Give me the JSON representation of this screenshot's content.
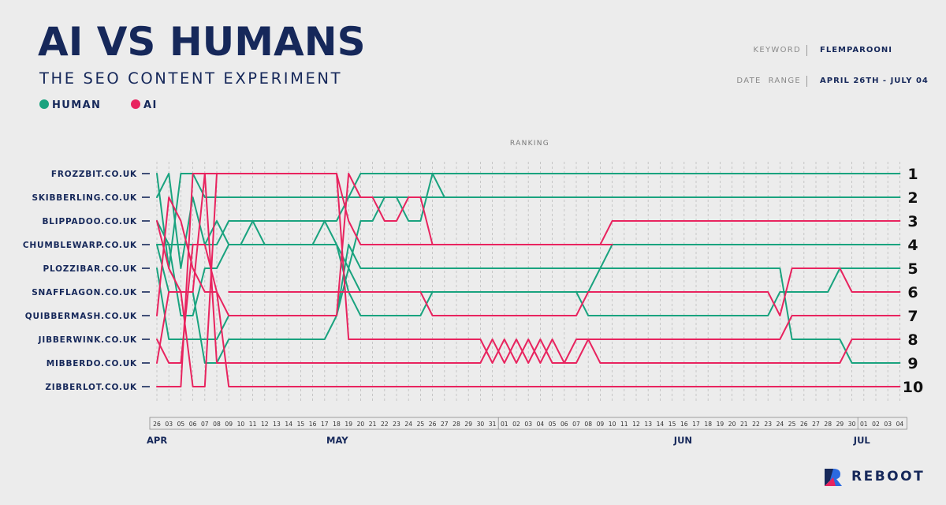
{
  "header": {
    "title": "AI VS HUMANS",
    "subtitle": "THE SEO CONTENT EXPERIMENT",
    "keyword_label": "KEYWORD",
    "keyword_value": "FLEMPAROONI",
    "date_range_label": "DATE  RANGE",
    "date_range_value": "APRIL 26TH - JULY 04"
  },
  "legend": {
    "human_label": "HUMAN",
    "ai_label": "AI"
  },
  "brand": {
    "name": "REBOOT"
  },
  "colors": {
    "human": "#1aa37f",
    "ai": "#e8245f",
    "text": "#16285a",
    "grid": "#bdbdbd"
  },
  "chart_data": {
    "type": "line",
    "title": "RANKING",
    "y_categories": [
      "FROZZBIT.CO.UK",
      "SKIBBERLING.CO.UK",
      "BLIPPADOO.CO.UK",
      "CHUMBLEWARP.CO.UK",
      "PLOZZIBAR.CO.UK",
      "SNAFFLAGON.CO.UK",
      "QUIBBERMASH.CO.UK",
      "JIBBERWINK.CO.UK",
      "MIBBERDO.CO.UK",
      "ZIBBERLOT.CO.UK"
    ],
    "y_rank_labels": [
      "1",
      "2",
      "3",
      "4",
      "5",
      "6",
      "7",
      "8",
      "9",
      "10"
    ],
    "x_ticks": [
      "26",
      "03",
      "05",
      "06",
      "07",
      "08",
      "09",
      "10",
      "11",
      "12",
      "13",
      "14",
      "15",
      "16",
      "17",
      "18",
      "19",
      "20",
      "21",
      "22",
      "23",
      "24",
      "25",
      "26",
      "27",
      "28",
      "29",
      "30",
      "31",
      "01",
      "02",
      "03",
      "04",
      "05",
      "06",
      "07",
      "08",
      "09",
      "10",
      "11",
      "12",
      "13",
      "14",
      "15",
      "16",
      "17",
      "18",
      "19",
      "20",
      "21",
      "22",
      "23",
      "24",
      "25",
      "26",
      "27",
      "28",
      "29",
      "30",
      "01",
      "02",
      "03",
      "04"
    ],
    "months": [
      {
        "label": "APR",
        "tick_index": 0
      },
      {
        "label": "MAY",
        "tick_index": 15
      },
      {
        "label": "JUN",
        "tick_index": 44
      },
      {
        "label": "JUL",
        "tick_index": 59
      }
    ],
    "month_boundaries": [
      28,
      58
    ],
    "series": [
      {
        "name": "HUMAN",
        "group": "human",
        "points": [
          [
            0,
            1
          ],
          [
            1,
            5
          ],
          [
            2,
            1
          ],
          [
            3,
            1
          ],
          [
            4,
            2
          ],
          [
            5,
            2
          ],
          [
            6,
            2
          ],
          [
            62,
            2
          ]
        ]
      },
      {
        "name": "HUMAN",
        "group": "human",
        "points": [
          [
            0,
            2
          ],
          [
            1,
            1
          ],
          [
            2,
            5
          ],
          [
            3,
            2
          ],
          [
            4,
            4
          ],
          [
            5,
            4
          ],
          [
            6,
            3
          ],
          [
            15,
            3
          ],
          [
            16,
            2
          ],
          [
            17,
            1
          ],
          [
            22,
            1
          ],
          [
            23,
            1
          ],
          [
            24,
            2
          ],
          [
            62,
            2
          ]
        ]
      },
      {
        "name": "HUMAN",
        "group": "human",
        "points": [
          [
            0,
            3
          ],
          [
            1,
            4
          ],
          [
            2,
            7
          ],
          [
            3,
            7
          ],
          [
            4,
            5
          ],
          [
            5,
            5
          ],
          [
            6,
            4
          ],
          [
            15,
            4
          ],
          [
            16,
            5
          ],
          [
            17,
            3
          ],
          [
            18,
            3
          ],
          [
            19,
            2
          ],
          [
            20,
            2
          ],
          [
            21,
            3
          ],
          [
            22,
            3
          ],
          [
            23,
            1
          ],
          [
            62,
            1
          ]
        ]
      },
      {
        "name": "HUMAN",
        "group": "human",
        "points": [
          [
            0,
            5
          ],
          [
            1,
            8
          ],
          [
            2,
            8
          ],
          [
            3,
            8
          ],
          [
            4,
            8
          ],
          [
            5,
            8
          ],
          [
            6,
            7
          ],
          [
            15,
            7
          ],
          [
            16,
            5
          ],
          [
            17,
            6
          ],
          [
            22,
            6
          ],
          [
            23,
            6
          ],
          [
            24,
            6
          ],
          [
            35,
            6
          ],
          [
            36,
            7
          ],
          [
            51,
            7
          ],
          [
            52,
            6
          ],
          [
            56,
            6
          ],
          [
            57,
            5
          ],
          [
            62,
            5
          ]
        ]
      },
      {
        "name": "HUMAN",
        "group": "human",
        "points": [
          [
            0,
            4
          ],
          [
            1,
            6
          ],
          [
            2,
            6
          ],
          [
            3,
            6
          ],
          [
            4,
            9
          ],
          [
            5,
            9
          ],
          [
            6,
            8
          ],
          [
            14,
            8
          ],
          [
            15,
            7
          ],
          [
            16,
            4
          ],
          [
            17,
            5
          ],
          [
            22,
            5
          ],
          [
            23,
            5
          ],
          [
            52,
            5
          ],
          [
            53,
            8
          ],
          [
            57,
            8
          ],
          [
            58,
            9
          ],
          [
            62,
            9
          ]
        ]
      },
      {
        "name": "HUMAN",
        "group": "human",
        "points": [
          [
            0,
            4
          ],
          [
            4,
            4
          ],
          [
            5,
            3
          ],
          [
            6,
            4
          ],
          [
            7,
            4
          ],
          [
            8,
            3
          ],
          [
            9,
            4
          ],
          [
            12,
            4
          ],
          [
            13,
            4
          ],
          [
            14,
            3
          ],
          [
            15,
            4
          ],
          [
            16,
            6
          ],
          [
            17,
            7
          ],
          [
            22,
            7
          ],
          [
            23,
            6
          ],
          [
            24,
            6
          ],
          [
            35,
            6
          ],
          [
            36,
            6
          ],
          [
            37,
            5
          ],
          [
            38,
            4
          ],
          [
            62,
            4
          ]
        ]
      },
      {
        "name": "AI",
        "group": "ai",
        "points": [
          [
            0,
            3
          ],
          [
            1,
            5
          ],
          [
            2,
            6
          ],
          [
            3,
            6
          ],
          [
            4,
            1
          ],
          [
            5,
            1
          ],
          [
            6,
            1
          ],
          [
            15,
            1
          ],
          [
            16,
            3
          ],
          [
            17,
            4
          ],
          [
            22,
            4
          ],
          [
            23,
            4
          ],
          [
            37,
            4
          ],
          [
            38,
            3
          ],
          [
            62,
            3
          ]
        ]
      },
      {
        "name": "AI",
        "group": "ai",
        "points": [
          [
            0,
            8
          ],
          [
            1,
            9
          ],
          [
            2,
            9
          ],
          [
            3,
            4
          ],
          [
            4,
            4
          ],
          [
            5,
            6
          ],
          [
            6,
            10
          ],
          [
            62,
            10
          ]
        ]
      },
      {
        "name": "AI",
        "group": "ai",
        "points": [
          [
            0,
            7
          ],
          [
            1,
            2
          ],
          [
            2,
            3
          ],
          [
            3,
            5
          ],
          [
            4,
            6
          ],
          [
            5,
            6
          ],
          [
            6,
            7
          ],
          [
            15,
            7
          ],
          [
            16,
            1
          ],
          [
            17,
            2
          ],
          [
            18,
            2
          ],
          [
            19,
            3
          ],
          [
            20,
            3
          ],
          [
            21,
            2
          ],
          [
            22,
            2
          ],
          [
            23,
            4
          ],
          [
            24,
            4
          ],
          [
            37,
            4
          ],
          [
            38,
            4
          ]
        ]
      },
      {
        "name": "AI",
        "group": "ai",
        "points": [
          [
            0,
            9
          ],
          [
            1,
            6
          ],
          [
            2,
            6
          ],
          [
            3,
            10
          ],
          [
            4,
            10
          ],
          [
            5,
            1
          ],
          [
            6,
            1
          ],
          [
            15,
            1
          ],
          [
            16,
            8
          ],
          [
            27,
            8
          ],
          [
            28,
            9
          ],
          [
            29,
            8
          ],
          [
            30,
            9
          ],
          [
            31,
            8
          ],
          [
            32,
            9
          ],
          [
            33,
            8
          ],
          [
            34,
            9
          ],
          [
            35,
            8
          ],
          [
            36,
            8
          ],
          [
            37,
            8
          ],
          [
            52,
            8
          ],
          [
            53,
            7
          ],
          [
            62,
            7
          ]
        ]
      },
      {
        "name": "AI",
        "group": "ai",
        "points": [
          [
            0,
            10
          ],
          [
            2,
            10
          ],
          [
            3,
            1
          ],
          [
            4,
            1
          ],
          [
            5,
            9
          ],
          [
            15,
            9
          ],
          [
            16,
            9
          ],
          [
            27,
            9
          ],
          [
            28,
            8
          ],
          [
            29,
            9
          ],
          [
            30,
            8
          ],
          [
            31,
            9
          ],
          [
            32,
            8
          ],
          [
            33,
            9
          ],
          [
            34,
            9
          ],
          [
            35,
            9
          ],
          [
            36,
            8
          ],
          [
            37,
            9
          ],
          [
            57,
            9
          ],
          [
            58,
            8
          ],
          [
            62,
            8
          ]
        ]
      },
      {
        "name": "AI",
        "group": "ai",
        "points": [
          [
            6,
            6
          ],
          [
            15,
            6
          ],
          [
            16,
            6
          ],
          [
            17,
            6
          ],
          [
            22,
            6
          ],
          [
            23,
            7
          ],
          [
            35,
            7
          ],
          [
            36,
            6
          ],
          [
            51,
            6
          ],
          [
            52,
            7
          ],
          [
            53,
            5
          ],
          [
            57,
            5
          ],
          [
            58,
            6
          ],
          [
            62,
            6
          ]
        ]
      }
    ]
  }
}
